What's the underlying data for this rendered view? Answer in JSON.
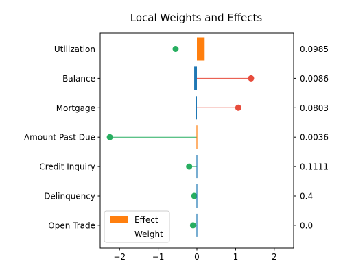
{
  "chart_data": {
    "type": "bar",
    "title": "Local Weights and Effects",
    "categories": [
      "Utilization",
      "Balance",
      "Mortgage",
      "Amount Past Due",
      "Credit Inquiry",
      "Delinquency",
      "Open Trade"
    ],
    "right_labels": [
      "0.0985",
      "0.0086",
      "0.0803",
      "0.0036",
      "0.1111",
      "0.4",
      "0.0"
    ],
    "series": [
      {
        "name": "Effect",
        "mark": "bar",
        "values": [
          0.2,
          -0.07,
          -0.03,
          0.005,
          -0.01,
          -0.005,
          0.0
        ]
      },
      {
        "name": "Weight",
        "mark": "lollipop",
        "values": [
          -0.55,
          1.4,
          1.07,
          -2.25,
          -0.2,
          -0.07,
          -0.1
        ]
      }
    ],
    "effect_colors": [
      "#ff7f0e",
      "#1f77b4",
      "#1f77b4",
      "#ff7f0e",
      "#1f77b4",
      "#1f77b4",
      "#1f77b4"
    ],
    "weight_colors": [
      "#27ae60",
      "#e74c3c",
      "#e74c3c",
      "#27ae60",
      "#27ae60",
      "#27ae60",
      "#27ae60"
    ],
    "xlim": [
      -2.5,
      2.5
    ],
    "xticks": [
      -2,
      -1,
      0,
      1,
      2
    ],
    "xtick_labels": [
      "−2",
      "−1",
      "0",
      "1",
      "2"
    ],
    "legend": {
      "placement": "lower-left",
      "entries": [
        {
          "label": "Effect",
          "color": "#ff7f0e",
          "kind": "patch"
        },
        {
          "label": "Weight",
          "color": "#e74c3c",
          "kind": "line"
        }
      ]
    },
    "grid": false
  }
}
